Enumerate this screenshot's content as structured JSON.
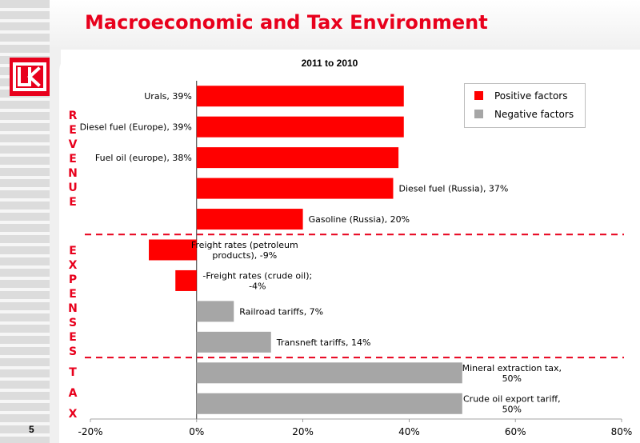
{
  "slide": {
    "title": "Macroeconomic and Tax Environment",
    "page_number": "5"
  },
  "colors": {
    "accent": "#e8001c",
    "positive": "#ff0000",
    "negative": "#a6a6a6"
  },
  "logo": {
    "icon": "lukoil-logo-icon"
  },
  "side_labels": {
    "revenue": [
      "R",
      "E",
      "V",
      "E",
      "N",
      "U",
      "E"
    ],
    "expenses": [
      "E",
      "X",
      "P",
      "E",
      "N",
      "S",
      "E",
      "S"
    ],
    "tax": [
      "T",
      "A",
      "X"
    ]
  },
  "legend": {
    "positive": "Positive factors",
    "negative": "Negative factors"
  },
  "chart_data": {
    "type": "bar",
    "orientation": "horizontal",
    "title": "2011 to 2010",
    "xlim": [
      -20,
      80
    ],
    "x_ticks": [
      "-20%",
      "0%",
      "20%",
      "40%",
      "60%",
      "80%"
    ],
    "legend_position": "top-right",
    "bars": [
      {
        "label": "Urals, 39%",
        "value": 39,
        "factor": "positive"
      },
      {
        "label": "Diesel fuel (Europe), 39%",
        "value": 39,
        "factor": "positive"
      },
      {
        "label": "Fuel oil (europe), 38%",
        "value": 38,
        "factor": "positive"
      },
      {
        "label": "Diesel fuel (Russia), 37%",
        "value": 37,
        "factor": "positive"
      },
      {
        "label": "Gasoline (Russia), 20%",
        "value": 20,
        "factor": "positive"
      },
      {
        "label": "Freight rates (petroleum products), -9%",
        "value": -9,
        "factor": "positive"
      },
      {
        "label": "-Freight rates (crude oil); -4%",
        "value": -4,
        "factor": "positive"
      },
      {
        "label": "Railroad tariffs, 7%",
        "value": 7,
        "factor": "negative"
      },
      {
        "label": "Transneft tariffs, 14%",
        "value": 14,
        "factor": "negative"
      },
      {
        "label": "Mineral extraction tax, 50%",
        "value": 50,
        "factor": "negative"
      },
      {
        "label": "Crude oil export tariff, 50%",
        "value": 50,
        "factor": "negative"
      }
    ]
  }
}
